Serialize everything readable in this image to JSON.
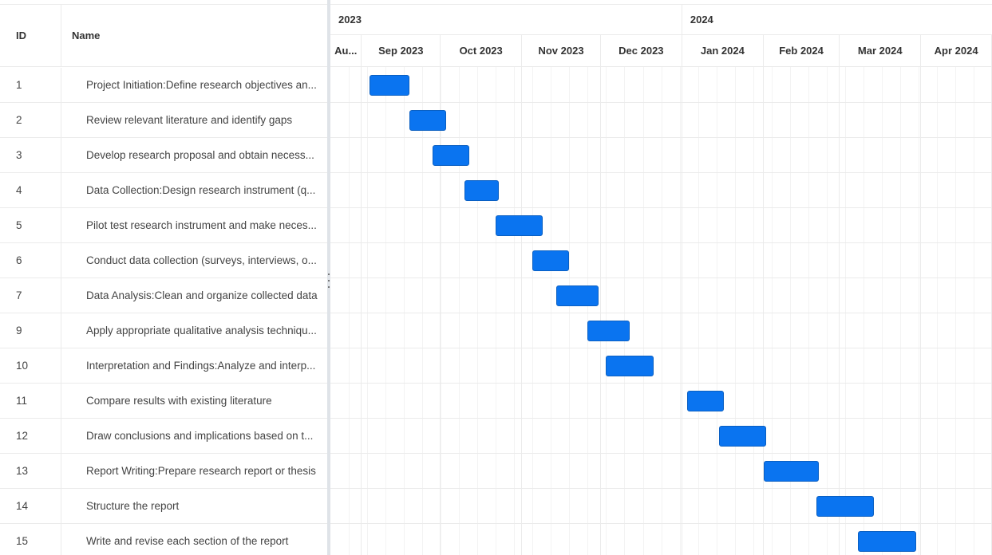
{
  "columns": {
    "id_label": "ID",
    "name_label": "Name"
  },
  "scale": {
    "years": [
      {
        "label": "2023",
        "start": "2023-08-20",
        "end": "2024-01-01"
      },
      {
        "label": "2024",
        "start": "2024-01-01",
        "end": "2024-04-30"
      }
    ],
    "months": [
      {
        "label": "Au...",
        "start": "2023-08-20",
        "end": "2023-09-01"
      },
      {
        "label": "Sep 2023",
        "start": "2023-09-01",
        "end": "2023-10-01"
      },
      {
        "label": "Oct 2023",
        "start": "2023-10-01",
        "end": "2023-11-01"
      },
      {
        "label": "Nov 2023",
        "start": "2023-11-01",
        "end": "2023-12-01"
      },
      {
        "label": "Dec 2023",
        "start": "2023-12-01",
        "end": "2024-01-01"
      },
      {
        "label": "Jan 2024",
        "start": "2024-01-01",
        "end": "2024-02-01"
      },
      {
        "label": "Feb 2024",
        "start": "2024-02-01",
        "end": "2024-03-01"
      },
      {
        "label": "Mar 2024",
        "start": "2024-03-01",
        "end": "2024-04-01"
      },
      {
        "label": "Apr 2024",
        "start": "2024-04-01",
        "end": "2024-04-30"
      }
    ]
  },
  "tasks": [
    {
      "id": "1",
      "name": "Project Initiation:Define research objectives an...",
      "start": "2023-09-04",
      "end": "2023-09-19"
    },
    {
      "id": "2",
      "name": "Review relevant literature and identify gaps",
      "start": "2023-09-19",
      "end": "2023-10-03"
    },
    {
      "id": "3",
      "name": "Develop research proposal and obtain necess...",
      "start": "2023-09-28",
      "end": "2023-10-12"
    },
    {
      "id": "4",
      "name": "Data Collection:Design research instrument (q...",
      "start": "2023-10-10",
      "end": "2023-10-23"
    },
    {
      "id": "5",
      "name": "Pilot test research instrument and make neces...",
      "start": "2023-10-22",
      "end": "2023-11-09"
    },
    {
      "id": "6",
      "name": "Conduct data collection (surveys, interviews, o...",
      "start": "2023-11-05",
      "end": "2023-11-19"
    },
    {
      "id": "7",
      "name": "Data Analysis:Clean and organize collected data",
      "start": "2023-11-14",
      "end": "2023-11-30"
    },
    {
      "id": "9",
      "name": "Apply appropriate qualitative analysis techniqu...",
      "start": "2023-11-26",
      "end": "2023-12-12"
    },
    {
      "id": "10",
      "name": "Interpretation and Findings:Analyze and interp...",
      "start": "2023-12-03",
      "end": "2023-12-21"
    },
    {
      "id": "11",
      "name": "Compare results with existing literature",
      "start": "2024-01-03",
      "end": "2024-01-17"
    },
    {
      "id": "12",
      "name": "Draw conclusions and implications based on t...",
      "start": "2024-01-15",
      "end": "2024-02-02"
    },
    {
      "id": "13",
      "name": "Report Writing:Prepare research report or thesis",
      "start": "2024-02-01",
      "end": "2024-02-22"
    },
    {
      "id": "14",
      "name": "Structure the report",
      "start": "2024-02-21",
      "end": "2024-03-14"
    },
    {
      "id": "15",
      "name": "Write and revise each section of the report",
      "start": "2024-03-08",
      "end": "2024-03-30"
    }
  ],
  "colors": {
    "bar": "#0a74f0",
    "bar_border": "#0a5fc2",
    "grid_line": "#ebebeb"
  },
  "icons": {
    "splitter": "drag-handle-icon"
  }
}
